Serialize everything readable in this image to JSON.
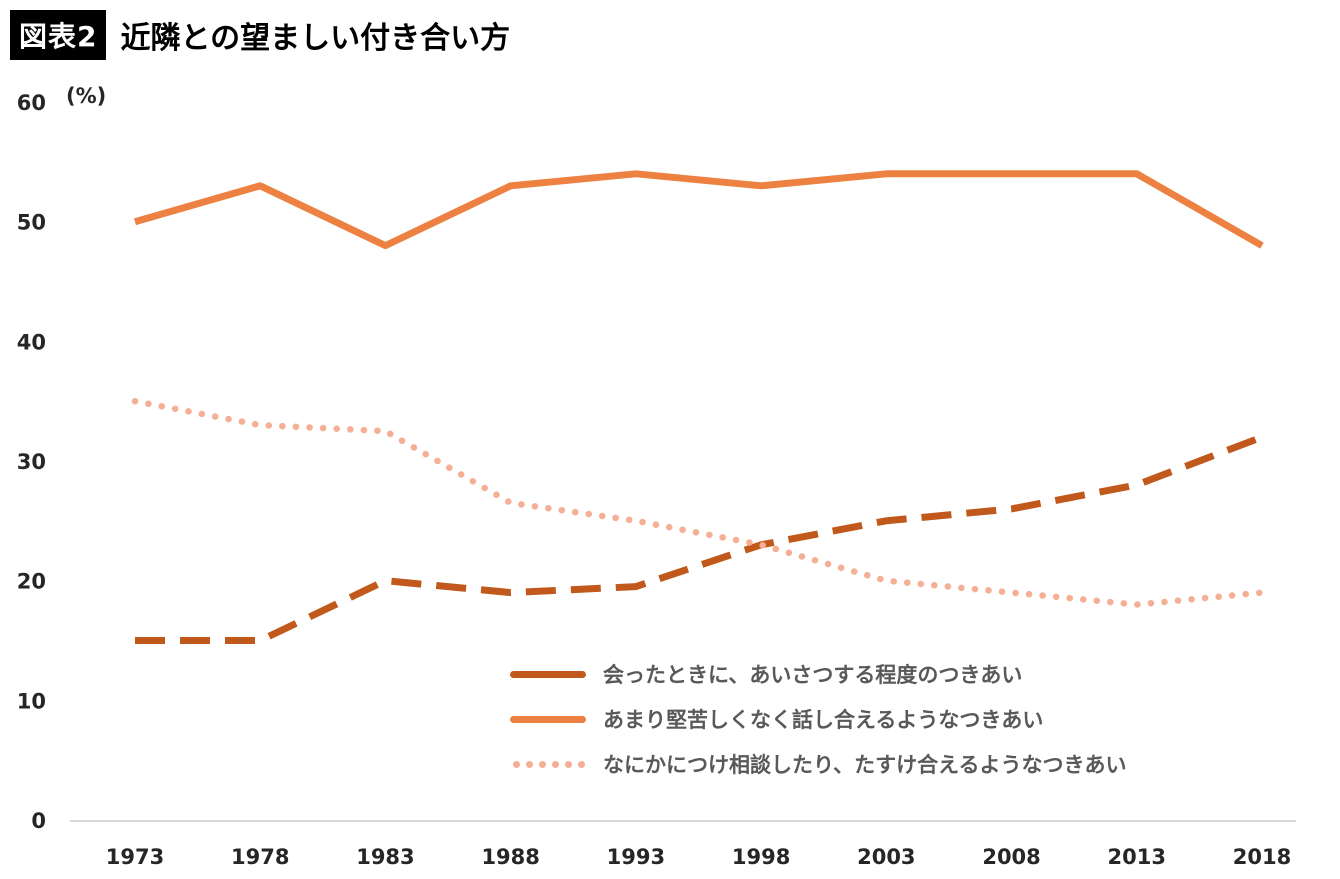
{
  "header": {
    "badge": "図表2",
    "title": "近隣との望ましい付き合い方"
  },
  "chart_data": {
    "type": "line",
    "title": "近隣との望ましい付き合い方",
    "unit_label": "(%)",
    "xlabel": "",
    "ylabel": "(%)",
    "ylim": [
      0,
      60
    ],
    "yticks": [
      0,
      10,
      20,
      30,
      40,
      50,
      60
    ],
    "grid": false,
    "legend_position": "inside-bottom-center",
    "categories": [
      "1973",
      "1978",
      "1983",
      "1988",
      "1993",
      "1998",
      "2003",
      "2008",
      "2013",
      "2018"
    ],
    "series": [
      {
        "name": "会ったときに、あいさつする程度のつきあい",
        "style": "dashed",
        "color": "#C0591B",
        "values": [
          15,
          15,
          20,
          19,
          19.5,
          23,
          25,
          26,
          28,
          32
        ]
      },
      {
        "name": "あまり堅苦しくなく話し合えるようなつきあい",
        "style": "solid",
        "color": "#ED8141",
        "values": [
          50,
          53,
          48,
          53,
          54,
          53,
          54,
          54,
          54,
          48
        ]
      },
      {
        "name": "なにかにつけ相談したり、たすけ合えるようなつきあい",
        "style": "dotted",
        "color": "#F4AF94",
        "values": [
          35,
          33,
          32.5,
          26.5,
          25,
          23,
          20,
          19,
          18,
          19
        ]
      }
    ],
    "colors": {
      "axis_line": "#D9D9D9",
      "tick_text": "#262626",
      "legend_text": "#595959"
    }
  }
}
